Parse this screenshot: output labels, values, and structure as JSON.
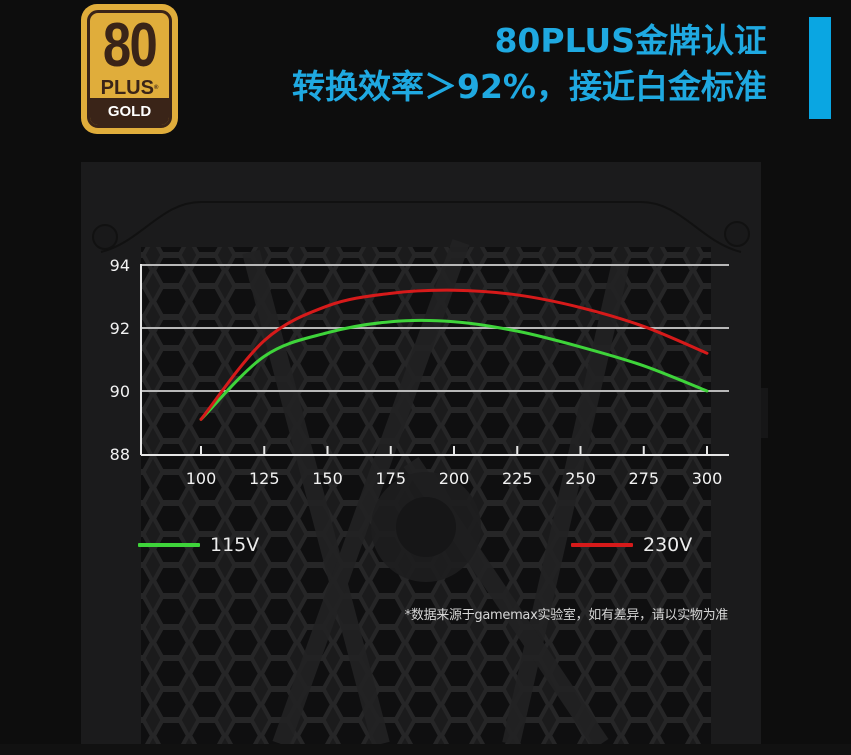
{
  "badge": {
    "number": "80",
    "plus": "PLUS",
    "registered": "®",
    "tier": "GOLD",
    "colors": {
      "gold": "#e0ad3b",
      "dark": "#3a2418"
    }
  },
  "headline": {
    "line1": "80PLUS金牌认证",
    "line2": "转换效率＞92%，接近白金标准",
    "color": "#1fa9e1"
  },
  "legend": {
    "items": [
      {
        "label": "115V",
        "color": "#3ed43a"
      },
      {
        "label": "230V",
        "color": "#d61a1a"
      }
    ]
  },
  "footnote": "*数据来源于gamemax实验室，如有差异，请以实物为准",
  "chart_data": {
    "type": "line",
    "title": "",
    "xlabel": "",
    "ylabel": "",
    "x": [
      100,
      125,
      150,
      175,
      200,
      225,
      250,
      275,
      300
    ],
    "x_ticks": [
      "100",
      "125",
      "150",
      "175",
      "200",
      "225",
      "250",
      "275",
      "300"
    ],
    "y_ticks": [
      "88",
      "90",
      "92",
      "94"
    ],
    "xlim": [
      100,
      300
    ],
    "ylim": [
      88,
      94
    ],
    "grid": "horizontal",
    "legend_position": "bottom",
    "series": [
      {
        "name": "115V",
        "color": "#3ed43a",
        "values": [
          89.1,
          91.1,
          91.85,
          92.2,
          92.2,
          91.9,
          91.4,
          90.8,
          90.0
        ]
      },
      {
        "name": "230V",
        "color": "#d61a1a",
        "values": [
          89.1,
          91.6,
          92.7,
          93.1,
          93.2,
          93.05,
          92.65,
          92.05,
          91.2
        ]
      }
    ]
  }
}
